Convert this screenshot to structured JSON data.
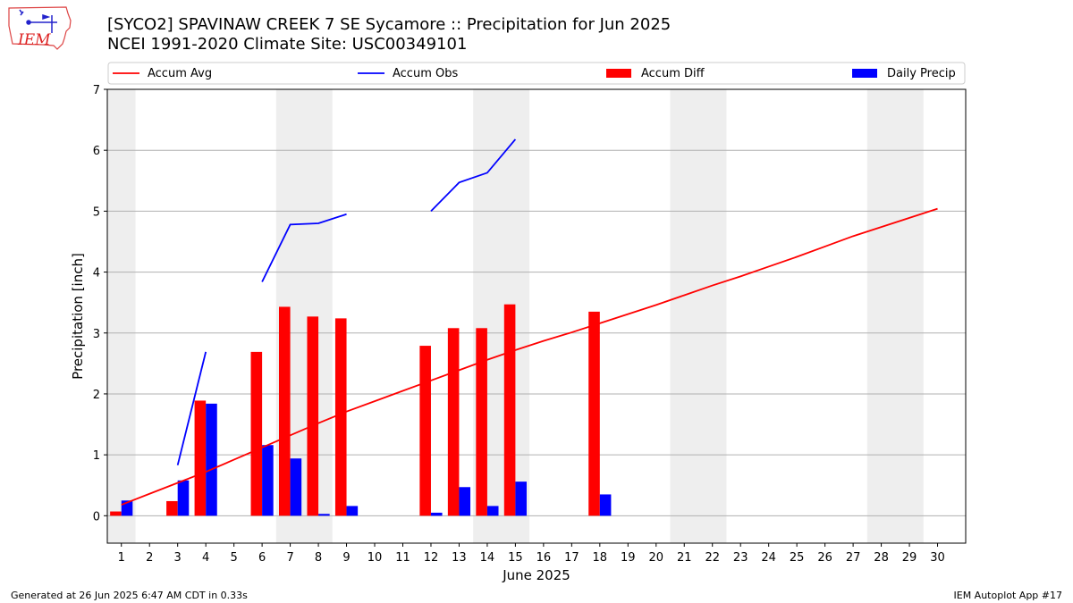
{
  "header": {
    "title_line1": "[SYCO2] SPAVINAW CREEK 7 SE Sycamore :: Precipitation for Jun 2025",
    "title_line2": "NCEI 1991-2020 Climate Site: USC00349101"
  },
  "logo": {
    "text": "IEM",
    "icon": "iem-iowa-map-logo"
  },
  "footer": {
    "left": "Generated at 26 Jun 2025 6:47 AM CDT in 0.33s",
    "right": "IEM Autoplot App #17"
  },
  "colors": {
    "accum_avg": "#ff0000",
    "accum_obs": "#0000ff",
    "accum_diff": "#ff0000",
    "daily_precip": "#0000ff",
    "weekend_shade": "#eeeeee",
    "grid": "#b0b0b0"
  },
  "chart_data": {
    "type": "bar",
    "xlabel": "June 2025",
    "ylabel": "Precipitation [inch]",
    "xlim": [
      0.5,
      31
    ],
    "ylim": [
      -0.45,
      7
    ],
    "x_ticks": [
      1,
      2,
      3,
      4,
      5,
      6,
      7,
      8,
      9,
      10,
      11,
      12,
      13,
      14,
      15,
      16,
      17,
      18,
      19,
      20,
      21,
      22,
      23,
      24,
      25,
      26,
      27,
      28,
      29,
      30
    ],
    "y_ticks": [
      0,
      1,
      2,
      3,
      4,
      5,
      6,
      7
    ],
    "grid": "horizontal",
    "legend_position": "top",
    "weekend_shading": [
      [
        0.5,
        1.5
      ],
      [
        6.5,
        8.5
      ],
      [
        13.5,
        15.5
      ],
      [
        20.5,
        22.5
      ],
      [
        27.5,
        29.5
      ]
    ],
    "legend": [
      "Accum Avg",
      "Accum Obs",
      "Accum Diff",
      "Daily Precip"
    ],
    "series": [
      {
        "name": "Accum Avg",
        "kind": "line",
        "x": [
          1,
          2,
          3,
          4,
          5,
          6,
          7,
          8,
          9,
          10,
          11,
          12,
          13,
          14,
          15,
          16,
          17,
          18,
          19,
          20,
          21,
          22,
          23,
          24,
          25,
          26,
          27,
          28,
          29,
          30
        ],
        "y": [
          0.18,
          0.36,
          0.54,
          0.72,
          0.92,
          1.12,
          1.32,
          1.52,
          1.71,
          1.88,
          2.05,
          2.22,
          2.39,
          2.56,
          2.72,
          2.87,
          3.01,
          3.16,
          3.31,
          3.46,
          3.62,
          3.78,
          3.93,
          4.09,
          4.25,
          4.42,
          4.59,
          4.74,
          4.89,
          5.04
        ]
      },
      {
        "name": "Accum Obs",
        "kind": "line",
        "segments": [
          {
            "x": [
              3,
              4
            ],
            "y": [
              0.83,
              2.69
            ]
          },
          {
            "x": [
              6,
              7,
              8,
              9
            ],
            "y": [
              3.84,
              4.78,
              4.8,
              4.95
            ]
          },
          {
            "x": [
              12,
              13,
              14,
              15
            ],
            "y": [
              5.0,
              5.47,
              5.63,
              6.18
            ]
          }
        ]
      },
      {
        "name": "Accum Diff",
        "kind": "bar",
        "x": [
          1,
          3,
          4,
          6,
          7,
          8,
          9,
          12,
          13,
          14,
          15,
          18
        ],
        "y": [
          0.07,
          0.24,
          1.89,
          2.69,
          3.43,
          3.27,
          3.24,
          2.79,
          3.08,
          3.08,
          3.47,
          3.35
        ]
      },
      {
        "name": "Daily Precip",
        "kind": "bar",
        "x": [
          1,
          3,
          4,
          6,
          7,
          8,
          9,
          12,
          13,
          14,
          15,
          18
        ],
        "y": [
          0.25,
          0.58,
          1.84,
          1.16,
          0.94,
          0.03,
          0.16,
          0.05,
          0.47,
          0.16,
          0.56,
          0.35
        ]
      }
    ]
  }
}
